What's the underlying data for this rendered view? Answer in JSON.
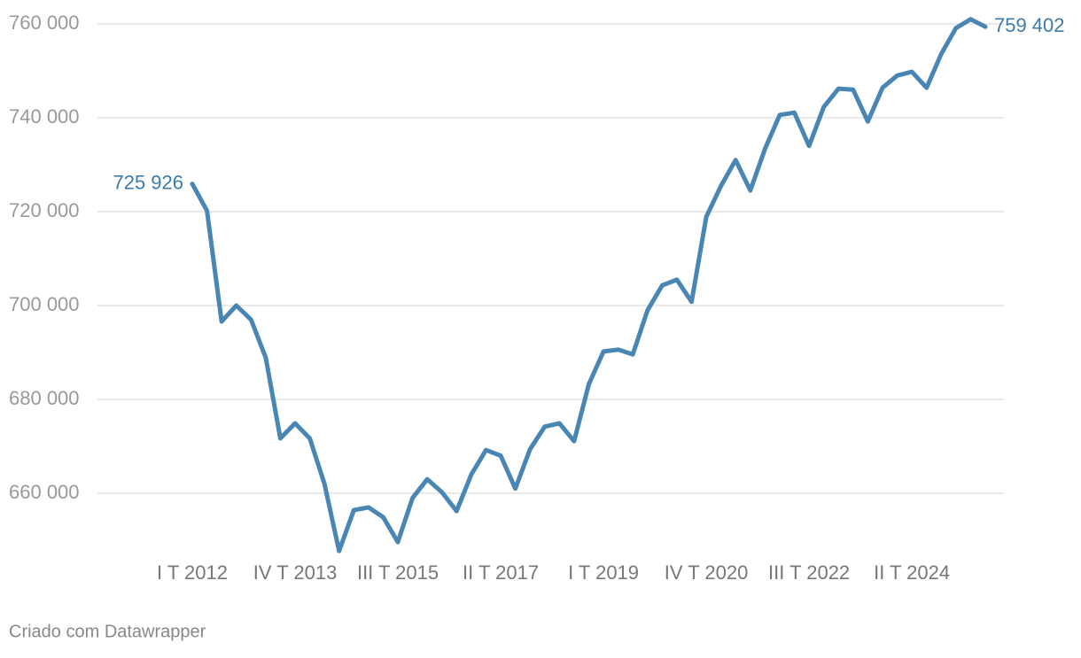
{
  "chart_data": {
    "type": "line",
    "categories": [
      "I T 2012",
      null,
      null,
      null,
      null,
      null,
      null,
      "IV T 2013",
      null,
      null,
      null,
      null,
      null,
      null,
      "III T 2015",
      null,
      null,
      null,
      null,
      null,
      null,
      "II T 2017",
      null,
      null,
      null,
      null,
      null,
      null,
      "I T 2019",
      null,
      null,
      null,
      null,
      null,
      null,
      "IV T 2020",
      null,
      null,
      null,
      null,
      null,
      null,
      "III T 2022",
      null,
      null,
      null,
      null,
      null,
      null,
      "II T 2024",
      null,
      null,
      null,
      null,
      null
    ],
    "values": [
      725926,
      720200,
      696600,
      700000,
      697000,
      688900,
      671700,
      674900,
      671700,
      662000,
      647700,
      656400,
      657000,
      654900,
      649600,
      659000,
      663000,
      660200,
      656200,
      664000,
      669200,
      668000,
      661000,
      669400,
      674200,
      674900,
      671100,
      683200,
      690200,
      690600,
      689600,
      699000,
      704300,
      705500,
      700800,
      718900,
      725500,
      731000,
      724500,
      733400,
      740600,
      741100,
      734000,
      742300,
      746200,
      746000,
      739200,
      746400,
      749000,
      749800,
      746400,
      753600,
      759100,
      761000,
      759402
    ],
    "value_labels": [
      "725 926",
      null,
      null,
      null,
      null,
      null,
      null,
      null,
      null,
      null,
      null,
      null,
      null,
      null,
      null,
      null,
      null,
      null,
      null,
      null,
      null,
      null,
      null,
      null,
      null,
      null,
      null,
      null,
      null,
      null,
      null,
      null,
      null,
      null,
      null,
      null,
      null,
      null,
      null,
      null,
      null,
      null,
      null,
      null,
      null,
      null,
      null,
      null,
      null,
      null,
      null,
      null,
      null,
      null,
      "759 402"
    ],
    "color": "#4a86b4",
    "ylim": [
      646000,
      762000
    ],
    "yticks": [
      {
        "value": 660000,
        "label": "660 000"
      },
      {
        "value": 680000,
        "label": "680 000"
      },
      {
        "value": 700000,
        "label": "700 000"
      },
      {
        "value": 720000,
        "label": "720 000"
      },
      {
        "value": 740000,
        "label": "740 000"
      },
      {
        "value": 760000,
        "label": "760 000"
      }
    ],
    "grid": true,
    "footer": "Criado com Datawrapper"
  }
}
